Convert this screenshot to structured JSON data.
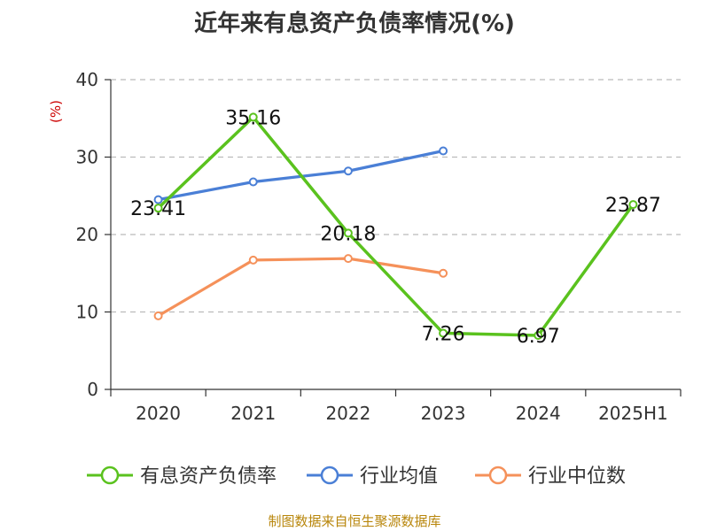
{
  "chart_data": {
    "type": "line",
    "title": "近年来有息资产负债率情况(%)",
    "ylabel": "(%)",
    "categories": [
      "2020",
      "2021",
      "2022",
      "2023",
      "2024",
      "2025H1"
    ],
    "ylim": [
      0,
      40
    ],
    "yticks": [
      0,
      10,
      20,
      30,
      40
    ],
    "grid": true,
    "legend_position": "bottom",
    "series": [
      {
        "name": "有息资产负债率",
        "color": "#5ac21e",
        "values": [
          23.41,
          35.16,
          20.18,
          7.26,
          6.97,
          23.87
        ],
        "labels": [
          "23.41",
          "35.16",
          "20.18",
          "7.26",
          "6.97",
          "23.87"
        ]
      },
      {
        "name": "行业均值",
        "color": "#4a7fd6",
        "values": [
          24.5,
          26.8,
          28.2,
          30.8,
          null,
          null
        ]
      },
      {
        "name": "行业中位数",
        "color": "#f5915a",
        "values": [
          9.5,
          16.7,
          16.9,
          15.0,
          null,
          null
        ]
      }
    ]
  },
  "source": "制图数据来自恒生聚源数据库"
}
